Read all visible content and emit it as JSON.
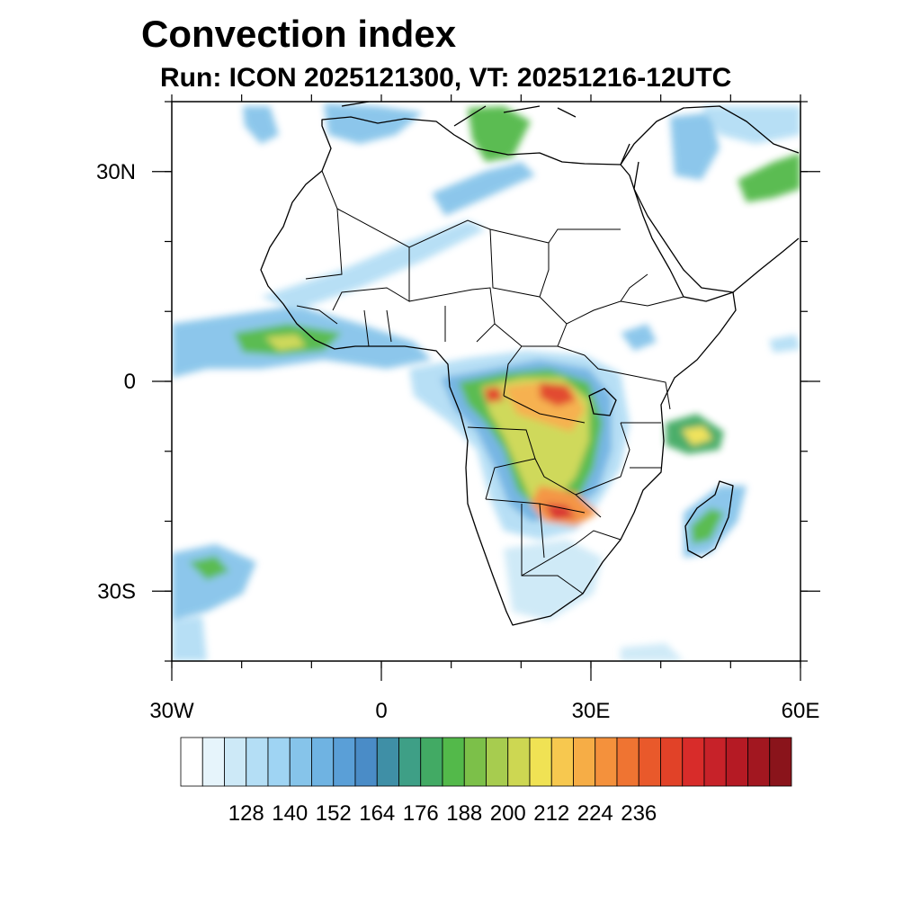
{
  "title": "Convection index",
  "subtitle": "Run: ICON 2025121300,  VT: 20251216-12UTC",
  "map": {
    "lon_range": [
      -30,
      60
    ],
    "lat_range": [
      -40,
      40
    ],
    "lon_ticks": [
      {
        "value": -30,
        "label": "30W"
      },
      {
        "value": 0,
        "label": "0"
      },
      {
        "value": 30,
        "label": "30E"
      },
      {
        "value": 60,
        "label": "60E"
      }
    ],
    "lat_ticks": [
      {
        "value": 30,
        "label": "30N"
      },
      {
        "value": 0,
        "label": "0"
      },
      {
        "value": -30,
        "label": "30S"
      }
    ]
  },
  "colorbar": {
    "colors": [
      "#ffffff",
      "#e6f4fb",
      "#cde9f7",
      "#b4def5",
      "#9fd4f3",
      "#86c4ea",
      "#6fb3e2",
      "#5a9fd7",
      "#4a8cc7",
      "#3f8fa6",
      "#3e9f86",
      "#42aa64",
      "#53b94a",
      "#7cc049",
      "#a7cc4f",
      "#cdd752",
      "#f0e254",
      "#f7c84f",
      "#f6ad46",
      "#f4913c",
      "#ef7432",
      "#e9592b",
      "#e14228",
      "#d82c2a",
      "#c72229",
      "#b51a24",
      "#a21720",
      "#8a141b"
    ],
    "labels": [
      "128",
      "140",
      "152",
      "164",
      "176",
      "188",
      "200",
      "212",
      "224",
      "236"
    ]
  }
}
